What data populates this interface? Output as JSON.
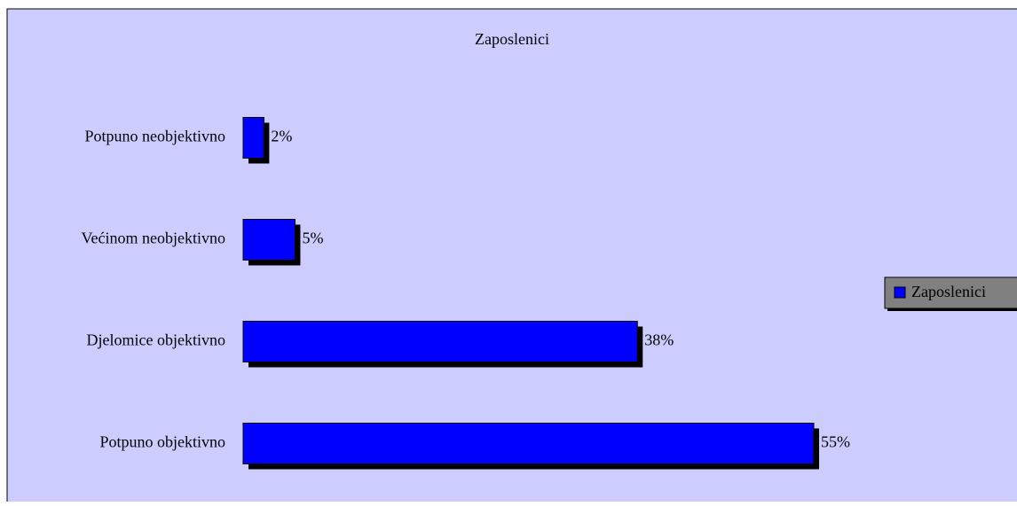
{
  "chart_data": {
    "type": "bar",
    "orientation": "horizontal",
    "title": "Zaposlenici",
    "categories": [
      "Potpuno neobjektivno",
      "Većinom neobjektivno",
      "Djelomice objektivno",
      "Potpuno objektivno"
    ],
    "series": [
      {
        "name": "Zaposlenici",
        "color": "#0000ff",
        "values": [
          2,
          5,
          38,
          55
        ],
        "value_labels": [
          "2%",
          "5%",
          "38%",
          "55%"
        ]
      }
    ],
    "legend": "right"
  }
}
